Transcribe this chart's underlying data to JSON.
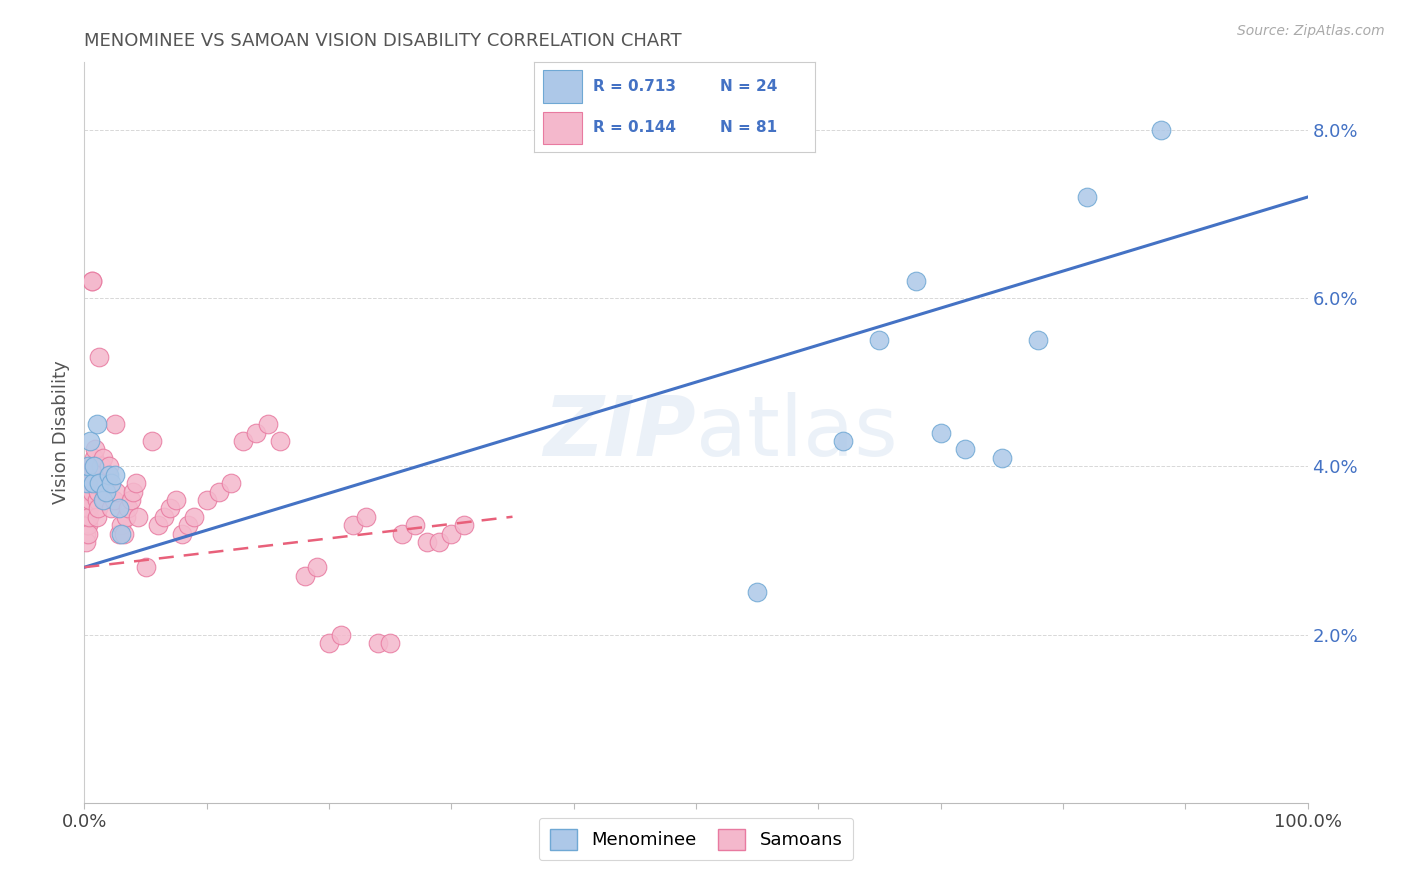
{
  "title": "MENOMINEE VS SAMOAN VISION DISABILITY CORRELATION CHART",
  "source": "Source: ZipAtlas.com",
  "ylabel": "Vision Disability",
  "watermark": "ZIPatlas",
  "legend_r1": "R = 0.713",
  "legend_n1": "N = 24",
  "legend_r2": "R = 0.144",
  "legend_n2": "N = 81",
  "menominee_color": "#adc8e8",
  "menominee_edge": "#6fa8d4",
  "samoan_color": "#f4b8cc",
  "samoan_edge": "#e87aa0",
  "line_menominee_color": "#4472c4",
  "line_samoan_color": "#e8607a",
  "grid_color": "#d8d8d8",
  "background_color": "#ffffff",
  "title_color": "#555555",
  "tick_color": "#4472c4",
  "menominee_x": [
    0.002,
    0.003,
    0.005,
    0.007,
    0.008,
    0.01,
    0.012,
    0.015,
    0.018,
    0.02,
    0.022,
    0.025,
    0.028,
    0.03,
    0.55,
    0.62,
    0.65,
    0.68,
    0.7,
    0.72,
    0.75,
    0.78,
    0.82,
    0.88
  ],
  "menominee_y": [
    0.038,
    0.04,
    0.043,
    0.038,
    0.04,
    0.045,
    0.038,
    0.036,
    0.037,
    0.039,
    0.038,
    0.039,
    0.035,
    0.032,
    0.025,
    0.043,
    0.055,
    0.062,
    0.044,
    0.042,
    0.041,
    0.055,
    0.072,
    0.08
  ],
  "samoan_x": [
    0.001,
    0.001,
    0.001,
    0.001,
    0.002,
    0.002,
    0.002,
    0.003,
    0.003,
    0.003,
    0.004,
    0.004,
    0.004,
    0.005,
    0.005,
    0.006,
    0.006,
    0.006,
    0.007,
    0.007,
    0.008,
    0.008,
    0.009,
    0.009,
    0.01,
    0.01,
    0.011,
    0.011,
    0.012,
    0.012,
    0.013,
    0.014,
    0.015,
    0.016,
    0.017,
    0.018,
    0.019,
    0.02,
    0.022,
    0.024,
    0.025,
    0.026,
    0.028,
    0.03,
    0.032,
    0.034,
    0.036,
    0.038,
    0.04,
    0.042,
    0.044,
    0.05,
    0.055,
    0.06,
    0.065,
    0.07,
    0.075,
    0.08,
    0.085,
    0.09,
    0.1,
    0.11,
    0.12,
    0.13,
    0.14,
    0.15,
    0.16,
    0.18,
    0.19,
    0.2,
    0.21,
    0.22,
    0.23,
    0.24,
    0.25,
    0.26,
    0.27,
    0.28,
    0.29,
    0.3,
    0.31
  ],
  "samoan_y": [
    0.034,
    0.033,
    0.032,
    0.031,
    0.036,
    0.034,
    0.033,
    0.035,
    0.033,
    0.032,
    0.037,
    0.035,
    0.034,
    0.038,
    0.036,
    0.062,
    0.062,
    0.037,
    0.04,
    0.038,
    0.041,
    0.039,
    0.042,
    0.04,
    0.036,
    0.034,
    0.037,
    0.035,
    0.038,
    0.053,
    0.039,
    0.04,
    0.041,
    0.036,
    0.037,
    0.038,
    0.039,
    0.04,
    0.035,
    0.036,
    0.045,
    0.037,
    0.032,
    0.033,
    0.032,
    0.034,
    0.035,
    0.036,
    0.037,
    0.038,
    0.034,
    0.028,
    0.043,
    0.033,
    0.034,
    0.035,
    0.036,
    0.032,
    0.033,
    0.034,
    0.036,
    0.037,
    0.038,
    0.043,
    0.044,
    0.045,
    0.043,
    0.027,
    0.028,
    0.019,
    0.02,
    0.033,
    0.034,
    0.019,
    0.019,
    0.032,
    0.033,
    0.031,
    0.031,
    0.032,
    0.033
  ],
  "xlim": [
    0.0,
    1.0
  ],
  "ylim": [
    0.0,
    0.088
  ],
  "men_line_x0": 0.0,
  "men_line_y0": 0.028,
  "men_line_x1": 1.0,
  "men_line_y1": 0.072,
  "sam_line_x0": 0.0,
  "sam_line_y0": 0.028,
  "sam_line_x1": 0.35,
  "sam_line_y1": 0.034
}
